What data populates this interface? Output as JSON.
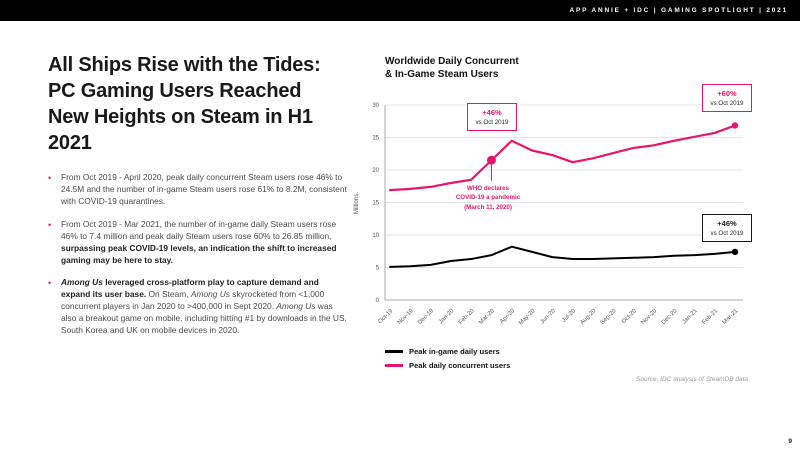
{
  "colors": {
    "accent": "#EB146B",
    "text_dark": "#1a1a1a"
  },
  "header": {
    "bar_text": "APP ANNIE + IDC  |  GAMING SPOTLIGHT  |  2021",
    "page_number": "9"
  },
  "left": {
    "title": "All Ships Rise with the Tides: PC Gaming Users Reached New Heights on Steam in H1 2021",
    "bullet_char": "•",
    "bullets": [
      [
        {
          "text": "From Oct 2019 - April 2020, peak daily concurrent Steam users rose 46% to 24.5M and the number of in-game Steam users rose 61% to 8.2M, consistent with COVID-19 quarantines."
        }
      ],
      [
        {
          "text": "From Oct 2019 - Mar 2021, the number of in-game daily Steam users rose 46% to 7.4 million and peak daily Steam users rose 60% to 26.85 million, "
        },
        {
          "text": "surpassing peak COVID-19 levels, an indication the shift to increased gaming may be here to stay.",
          "bold": true
        }
      ],
      [
        {
          "text": "Among Us",
          "bold": true,
          "italic": true
        },
        {
          "text": " leveraged cross-platform play to capture demand and expand its user base.",
          "bold": true
        },
        {
          "text": " On Steam, "
        },
        {
          "text": "Among Us",
          "italic": true
        },
        {
          "text": " skyrocketed from <1,000 concurrent players in Jan 2020 to >400,000 in Sept 2020. "
        },
        {
          "text": "Among Us",
          "italic": true
        },
        {
          "text": " was also a breakout game on mobile, including hitting #1 by downloads in the US, South Korea and UK on mobile devices in 2020."
        }
      ]
    ]
  },
  "chart": {
    "title_line1": "Worldwide Daily Concurrent",
    "title_line2": "& In-Game Steam Users",
    "source": "Source: IDC analysis of SteamDB data",
    "callouts": [
      {
        "value": "+46%",
        "sub": "vs Oct 2019",
        "border_color": "#EB146B",
        "value_color": "#EB146B"
      },
      {
        "value": "+60%",
        "sub": "vs Oct 2019",
        "border_color": "#EB146B",
        "value_color": "#EB146B"
      },
      {
        "value": "+46%",
        "sub": "vs Oct 2019",
        "border_color": "#1a1a1a",
        "value_color": "#1a1a1a"
      }
    ],
    "who": {
      "line1": "WHO declares",
      "line2": "COVID-19 a pandemic",
      "line3": "(March 11, 2020)"
    }
  },
  "chart_data": {
    "type": "line",
    "title": "Worldwide Daily Concurrent & In-Game Steam Users",
    "ylabel": "Millions.",
    "ylim": [
      0,
      30
    ],
    "yticks": [
      0,
      5,
      10,
      15,
      20,
      25,
      30
    ],
    "grid": true,
    "legend_position": "bottom-left",
    "categories": [
      "Oct-19",
      "Nov-19",
      "Dec-19",
      "Jan-20",
      "Feb-20",
      "Mar-20",
      "Apr-20",
      "May-20",
      "Jun-20",
      "Jul-20",
      "Aug-20",
      "Sep-20",
      "Oct-20",
      "Nov-20",
      "Dec-20",
      "Jan-21",
      "Feb-21",
      "Mar-21"
    ],
    "series": [
      {
        "name": "Peak in-game daily users",
        "color": "#000000",
        "width": 2,
        "end_dot": true,
        "values": [
          5.1,
          5.2,
          5.4,
          6.0,
          6.3,
          6.9,
          8.2,
          7.4,
          6.6,
          6.3,
          6.3,
          6.4,
          6.5,
          6.6,
          6.8,
          6.9,
          7.1,
          7.4
        ]
      },
      {
        "name": "Peak daily concurrent users",
        "color": "#EB146B",
        "width": 2.2,
        "end_dot": true,
        "values": [
          16.9,
          17.1,
          17.4,
          18.0,
          18.5,
          21.5,
          24.5,
          23.0,
          22.3,
          21.2,
          21.8,
          22.6,
          23.4,
          23.8,
          24.5,
          25.1,
          25.7,
          26.85
        ]
      }
    ],
    "markers": [
      {
        "series": 1,
        "index": 5,
        "r": 4.5,
        "drop": 16
      }
    ]
  }
}
